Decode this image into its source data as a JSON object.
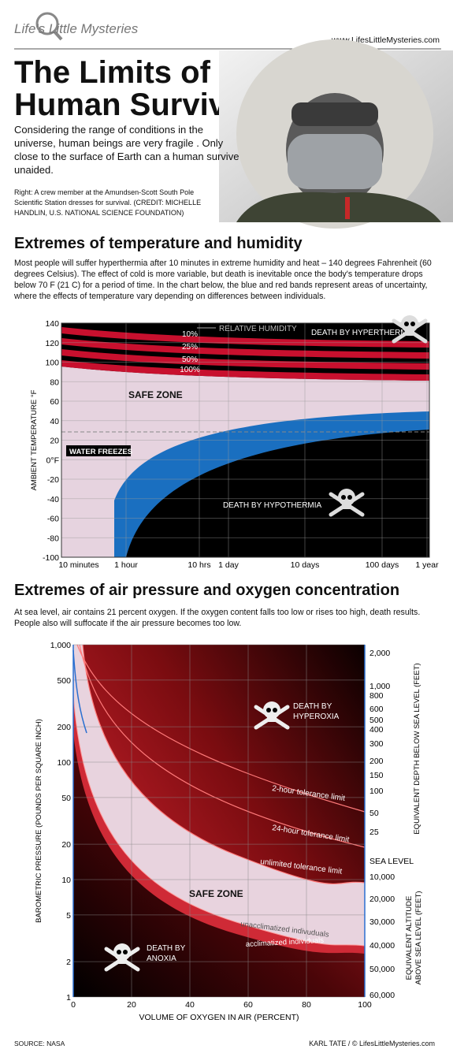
{
  "header": {
    "logo": "Life's Little Mysteries",
    "url": "www.LifesLittleMysteries.com",
    "title_lines": [
      "The Limits of",
      "Human Survival"
    ],
    "intro": "Considering the range of conditions in the universe, human beings are very fragile . Only close to the surface of Earth can a human survive unaided.",
    "caption": "Right: A crew member at the Amundsen-Scott South Pole Scientific Station dresses for survival. (CREDIT: MICHELLE HANDLIN, U.S.  NATIONAL SCIENCE FOUNDATION)"
  },
  "chart_data": [
    {
      "type": "area",
      "title": "Extremes of temperature and humidity",
      "subtitle": "Most people will suffer hyperthermia after 10 minutes in extreme humidity and heat – 140 degrees Fahrenheit (60 degrees Celsius). The effect of cold is more variable, but death is inevitable once the body's temperature drops below 70 F (21 C) for a period of time. In the chart below, the blue and red bands represent areas of uncertainty, where the effects of temperature vary depending on differences between individuals.",
      "y_label": "AMBIENT TEMPERATURE °F",
      "ylim": [
        -100,
        140
      ],
      "yticks": [
        -100,
        -80,
        -60,
        -40,
        -20,
        {
          "value": 0,
          "label": "0°F"
        },
        20,
        40,
        60,
        80,
        100,
        120,
        140
      ],
      "x_labels": [
        "10 minutes",
        "1 hour",
        "10 hrs",
        "1 day",
        "10 days",
        "100 days",
        "1 year"
      ],
      "grid": true,
      "annotations": {
        "humidity": "RELATIVE HUMIDITY",
        "h10": "10%",
        "h25": "25%",
        "h50": "50%",
        "h100": "100%",
        "hyperthermia": "DEATH BY HYPERTHERMIA",
        "safe": "SAFE ZONE",
        "freezes": "WATER FREEZES",
        "hypothermia": "DEATH BY HYPOTHERMIA"
      }
    },
    {
      "type": "area",
      "title": "Extremes of air pressure and oxygen concentration",
      "subtitle": "At sea level, air contains 21 percent oxygen. If the oxygen content falls too low or rises too high, death results. People also will suffocate if the air pressure becomes too low.",
      "log_y": true,
      "ylim": [
        1,
        1000
      ],
      "yticks": [
        1,
        2,
        5,
        10,
        20,
        50,
        100,
        200,
        500,
        {
          "value": 1000,
          "label": "1,000"
        }
      ],
      "xlim": [
        0,
        100
      ],
      "xticks": [
        0,
        20,
        40,
        60,
        80,
        100
      ],
      "grid": true,
      "x_label": "VOLUME OF OXYGEN IN AIR (PERCENT)",
      "y_label": "BAROMETRIC PRESSURE (POUNDS PER SQUARE INCH)",
      "y2_label_depth": "EQUIVALENT DEPTH BELOW SEA LEVEL (FEET)",
      "y2_label_altitude": [
        "EQUIVALENT ALTITUDE",
        "ABOVE SEA LEVEL (FEET)"
      ],
      "y2_labels": [
        "2,000",
        "1,000",
        "800",
        "600",
        "500",
        "400",
        "300",
        "200",
        "150",
        "100",
        "50",
        "25",
        "SEA LEVEL",
        "10,000",
        "20,000",
        "30,000",
        "40,000",
        "50,000",
        "60,000"
      ],
      "annotations": {
        "hyperoxia": [
          "DEATH BY",
          "HYPEROXIA"
        ],
        "t2": "2-hour tolerance limit",
        "t24": "24-hour tolerance limit",
        "tunl": "unlimited tolerance limit",
        "safe": "SAFE ZONE",
        "unacc": "unacclimatized indivuduals",
        "acc": "acclimatized individuals",
        "anoxia": [
          "DEATH BY",
          "ANOXIA"
        ]
      }
    }
  ],
  "footer": {
    "source": "SOURCE: NASA",
    "credit": "KARL TATE / © LifesLittleMysteries.com"
  }
}
